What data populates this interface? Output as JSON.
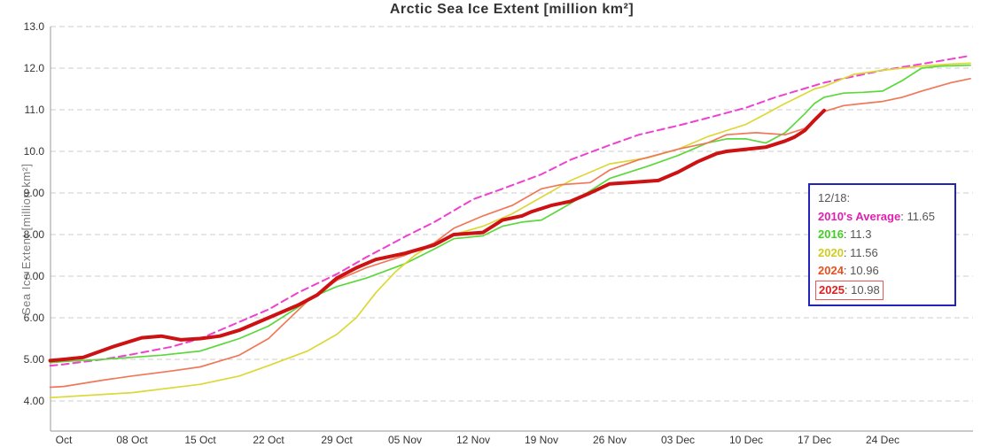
{
  "chart_data": {
    "type": "line",
    "title": "Arctic Sea Ice Extent [million km²]",
    "ylabel": "Sea Ice Extent [million km²]",
    "xlabel": "",
    "x_unit": "days since Oct 1",
    "xlim": [
      -1.4,
      93.3
    ],
    "ylim": [
      3.28,
      13.0
    ],
    "grid": "horizontal dashed gray lines, on",
    "grid_color": "#cccccc",
    "axis_color": "#aaaaaa",
    "legend_position": "inset box right-middle",
    "y_ticks": [
      4,
      5,
      6,
      7,
      8,
      9,
      10,
      11,
      12,
      13
    ],
    "y_tick_labels": [
      "4.00",
      "5.00",
      "6.00",
      "7.00",
      "8.00",
      "9.00",
      "10.0",
      "11.0",
      "12.0",
      "13.0"
    ],
    "x_tick_days": [
      0,
      7,
      14,
      21,
      28,
      35,
      42,
      49,
      56,
      63,
      70,
      77,
      84
    ],
    "x_tick_labels": [
      "Oct",
      "08 Oct",
      "15 Oct",
      "22 Oct",
      "29 Oct",
      "05 Nov",
      "12 Nov",
      "19 Nov",
      "26 Nov",
      "03 Dec",
      "10 Dec",
      "17 Dec",
      "24 Dec"
    ],
    "series": [
      {
        "name": "2010's Average",
        "color": "#ef40d0",
        "style": "dashed",
        "width": 2,
        "points": [
          [
            -1.4,
            4.85
          ],
          [
            0,
            4.88
          ],
          [
            4,
            5.0
          ],
          [
            7,
            5.12
          ],
          [
            11,
            5.3
          ],
          [
            14,
            5.5
          ],
          [
            17,
            5.8
          ],
          [
            21,
            6.2
          ],
          [
            24,
            6.6
          ],
          [
            28,
            7.05
          ],
          [
            31,
            7.45
          ],
          [
            35,
            7.95
          ],
          [
            38,
            8.3
          ],
          [
            42,
            8.85
          ],
          [
            45,
            9.1
          ],
          [
            49,
            9.45
          ],
          [
            52,
            9.8
          ],
          [
            56,
            10.15
          ],
          [
            59,
            10.4
          ],
          [
            63,
            10.62
          ],
          [
            66,
            10.8
          ],
          [
            70,
            11.05
          ],
          [
            73,
            11.3
          ],
          [
            77,
            11.58
          ],
          [
            78,
            11.65
          ],
          [
            81,
            11.8
          ],
          [
            84,
            11.95
          ],
          [
            88,
            12.1
          ],
          [
            91,
            12.22
          ],
          [
            93,
            12.3
          ]
        ]
      },
      {
        "name": "2016",
        "color": "#5cd83c",
        "style": "solid",
        "width": 1.7,
        "points": [
          [
            -1.4,
            4.92
          ],
          [
            0,
            4.95
          ],
          [
            4,
            5.0
          ],
          [
            7,
            5.05
          ],
          [
            10,
            5.1
          ],
          [
            14,
            5.2
          ],
          [
            18,
            5.5
          ],
          [
            21,
            5.8
          ],
          [
            24,
            6.25
          ],
          [
            26,
            6.55
          ],
          [
            28,
            6.75
          ],
          [
            31,
            6.95
          ],
          [
            35,
            7.3
          ],
          [
            38,
            7.65
          ],
          [
            40,
            7.9
          ],
          [
            43,
            7.97
          ],
          [
            45,
            8.2
          ],
          [
            47,
            8.3
          ],
          [
            49,
            8.35
          ],
          [
            52,
            8.75
          ],
          [
            54,
            9.05
          ],
          [
            56,
            9.35
          ],
          [
            60,
            9.65
          ],
          [
            63,
            9.9
          ],
          [
            66,
            10.2
          ],
          [
            68,
            10.3
          ],
          [
            70,
            10.3
          ],
          [
            72,
            10.2
          ],
          [
            74,
            10.45
          ],
          [
            76,
            10.9
          ],
          [
            77,
            11.15
          ],
          [
            78,
            11.3
          ],
          [
            80,
            11.4
          ],
          [
            82,
            11.42
          ],
          [
            84,
            11.45
          ],
          [
            86,
            11.7
          ],
          [
            88,
            12.0
          ],
          [
            90,
            12.05
          ],
          [
            93,
            12.07
          ]
        ]
      },
      {
        "name": "2020",
        "color": "#dcd838",
        "style": "solid",
        "width": 1.7,
        "points": [
          [
            -1.4,
            4.08
          ],
          [
            0,
            4.1
          ],
          [
            7,
            4.2
          ],
          [
            14,
            4.4
          ],
          [
            18,
            4.6
          ],
          [
            21,
            4.85
          ],
          [
            25,
            5.2
          ],
          [
            28,
            5.6
          ],
          [
            30,
            6.0
          ],
          [
            32,
            6.6
          ],
          [
            34,
            7.1
          ],
          [
            36,
            7.5
          ],
          [
            38,
            7.8
          ],
          [
            40,
            8.0
          ],
          [
            43,
            8.2
          ],
          [
            46,
            8.5
          ],
          [
            49,
            8.9
          ],
          [
            52,
            9.3
          ],
          [
            56,
            9.7
          ],
          [
            60,
            9.85
          ],
          [
            63,
            10.05
          ],
          [
            66,
            10.35
          ],
          [
            70,
            10.65
          ],
          [
            72,
            10.9
          ],
          [
            74,
            11.15
          ],
          [
            77,
            11.5
          ],
          [
            78,
            11.56
          ],
          [
            81,
            11.85
          ],
          [
            84,
            11.95
          ],
          [
            88,
            12.05
          ],
          [
            91,
            12.1
          ],
          [
            93,
            12.12
          ]
        ]
      },
      {
        "name": "2024",
        "color": "#f07858",
        "style": "solid",
        "width": 1.7,
        "points": [
          [
            -1.4,
            4.33
          ],
          [
            0,
            4.35
          ],
          [
            4,
            4.5
          ],
          [
            7,
            4.6
          ],
          [
            11,
            4.72
          ],
          [
            14,
            4.82
          ],
          [
            18,
            5.1
          ],
          [
            21,
            5.5
          ],
          [
            23,
            5.95
          ],
          [
            25,
            6.4
          ],
          [
            28,
            6.9
          ],
          [
            31,
            7.2
          ],
          [
            35,
            7.5
          ],
          [
            38,
            7.8
          ],
          [
            40,
            8.15
          ],
          [
            43,
            8.45
          ],
          [
            46,
            8.7
          ],
          [
            49,
            9.1
          ],
          [
            51,
            9.2
          ],
          [
            54,
            9.25
          ],
          [
            56,
            9.55
          ],
          [
            59,
            9.8
          ],
          [
            63,
            10.05
          ],
          [
            66,
            10.2
          ],
          [
            68,
            10.4
          ],
          [
            71,
            10.45
          ],
          [
            74,
            10.4
          ],
          [
            76,
            10.55
          ],
          [
            78,
            10.96
          ],
          [
            80,
            11.1
          ],
          [
            82,
            11.15
          ],
          [
            84,
            11.2
          ],
          [
            86,
            11.3
          ],
          [
            88,
            11.45
          ],
          [
            91,
            11.65
          ],
          [
            93,
            11.75
          ]
        ]
      },
      {
        "name": "2025",
        "color": "#cc1212",
        "style": "solid",
        "width": 4,
        "points": [
          [
            -1.4,
            4.97
          ],
          [
            0,
            5.0
          ],
          [
            2,
            5.05
          ],
          [
            5,
            5.3
          ],
          [
            8,
            5.52
          ],
          [
            10,
            5.56
          ],
          [
            12,
            5.47
          ],
          [
            14,
            5.5
          ],
          [
            16,
            5.56
          ],
          [
            18,
            5.7
          ],
          [
            21,
            6.0
          ],
          [
            24,
            6.3
          ],
          [
            26,
            6.55
          ],
          [
            28,
            6.95
          ],
          [
            30,
            7.2
          ],
          [
            32,
            7.4
          ],
          [
            35,
            7.55
          ],
          [
            38,
            7.75
          ],
          [
            40,
            8.0
          ],
          [
            43,
            8.05
          ],
          [
            45,
            8.35
          ],
          [
            47,
            8.45
          ],
          [
            48,
            8.55
          ],
          [
            50,
            8.7
          ],
          [
            52,
            8.8
          ],
          [
            54,
            9.0
          ],
          [
            56,
            9.22
          ],
          [
            58,
            9.25
          ],
          [
            61,
            9.3
          ],
          [
            63,
            9.5
          ],
          [
            65,
            9.75
          ],
          [
            67,
            9.95
          ],
          [
            68,
            10.0
          ],
          [
            70,
            10.05
          ],
          [
            72,
            10.1
          ],
          [
            74,
            10.25
          ],
          [
            75,
            10.35
          ],
          [
            76,
            10.5
          ],
          [
            77,
            10.75
          ],
          [
            78,
            10.98
          ]
        ]
      }
    ]
  },
  "legend": {
    "border_color": "#2323bb",
    "header": "12/18:",
    "rows": [
      {
        "label": "2010's Average",
        "value": "11.65",
        "color": "#e020b0",
        "boxed": false
      },
      {
        "label": "2016",
        "value": "11.3",
        "color": "#3fd020",
        "boxed": false
      },
      {
        "label": "2020",
        "value": "11.56",
        "color": "#d0cc20",
        "boxed": false
      },
      {
        "label": "2024",
        "value": "10.96",
        "color": "#e85020",
        "boxed": false
      },
      {
        "label": "2025",
        "value": "10.98",
        "color": "#e02020",
        "boxed": true
      }
    ]
  }
}
